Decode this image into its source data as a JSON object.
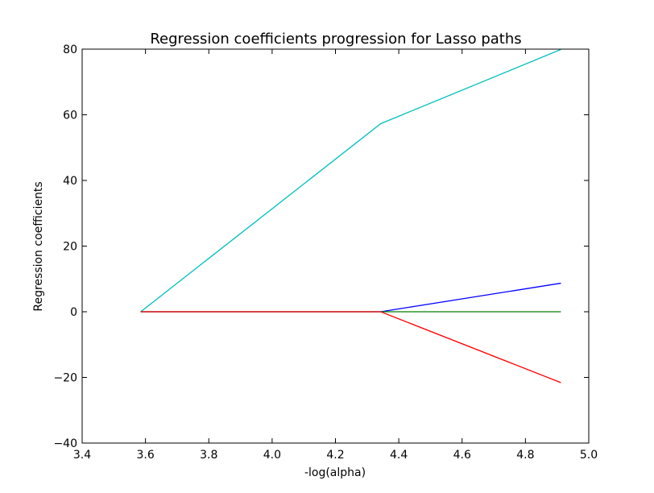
{
  "chart_data": {
    "type": "line",
    "title": "Regression coefficients progression for Lasso paths",
    "xlabel": "-log(alpha)",
    "ylabel": "Regression coefficients",
    "xlim": [
      3.4,
      5.0
    ],
    "ylim": [
      -40,
      80
    ],
    "x_ticks": [
      3.4,
      3.6,
      3.8,
      4.0,
      4.2,
      4.4,
      4.6,
      4.8,
      5.0
    ],
    "x_tick_labels": [
      "3.4",
      "3.6",
      "3.8",
      "4.0",
      "4.2",
      "4.4",
      "4.6",
      "4.8",
      "5.0"
    ],
    "y_ticks": [
      -40,
      -20,
      0,
      20,
      40,
      60,
      80
    ],
    "y_tick_labels": [
      "−40",
      "−20",
      "0",
      "20",
      "40",
      "60",
      "80"
    ],
    "grid": false,
    "legend": "none",
    "series": [
      {
        "color": "#00bfbf",
        "x": [
          3.585,
          4.343,
          4.912
        ],
        "y": [
          0,
          57.3,
          79.9
        ]
      },
      {
        "color": "#0000ff",
        "x": [
          3.585,
          4.343,
          4.912
        ],
        "y": [
          0,
          0,
          8.7
        ]
      },
      {
        "color": "#008000",
        "x": [
          3.585,
          4.343,
          4.912
        ],
        "y": [
          0,
          0,
          0
        ]
      },
      {
        "color": "#ff0000",
        "x": [
          3.585,
          4.343,
          4.912
        ],
        "y": [
          0,
          0,
          -21.6
        ]
      }
    ]
  }
}
